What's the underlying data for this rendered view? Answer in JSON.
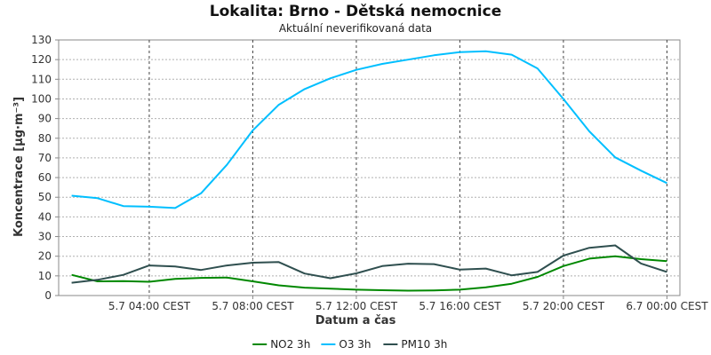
{
  "chart_data": {
    "type": "line",
    "title": "Lokalita: Brno - Dětská nemocnice",
    "subtitle": "Aktuální neverifikovaná data",
    "xlabel": "Datum a čas",
    "ylabel": "Koncentrace [µg·m⁻³]",
    "ylim": [
      0,
      130
    ],
    "yticks": [
      0,
      10,
      20,
      30,
      40,
      50,
      60,
      70,
      80,
      90,
      100,
      110,
      120,
      130
    ],
    "xlim": [
      0.5,
      24.5
    ],
    "xticks": [
      {
        "x": 4,
        "label": "5.7 04:00 CEST"
      },
      {
        "x": 8,
        "label": "5.7 08:00 CEST"
      },
      {
        "x": 12,
        "label": "5.7 12:00 CEST"
      },
      {
        "x": 16,
        "label": "5.7 16:00 CEST"
      },
      {
        "x": 20,
        "label": "5.7 20:00 CEST"
      },
      {
        "x": 24,
        "label": "6.7 00:00 CEST"
      }
    ],
    "grid": true,
    "legend_position": "bottom",
    "x": [
      1,
      2,
      3,
      4,
      5,
      6,
      7,
      8,
      9,
      10,
      11,
      12,
      13,
      14,
      15,
      16,
      17,
      18,
      19,
      20,
      21,
      22,
      23,
      24
    ],
    "series": [
      {
        "name": "NO2 3h",
        "color": "#008800",
        "values": [
          10.5,
          7.2,
          7.3,
          7.0,
          8.5,
          9.0,
          9.1,
          7.2,
          5.2,
          4.0,
          3.5,
          3.0,
          2.7,
          2.5,
          2.6,
          3.0,
          4.2,
          6.0,
          9.5,
          15.0,
          18.8,
          20.0,
          18.5,
          17.5
        ]
      },
      {
        "name": "O3 3h",
        "color": "#00bfff",
        "values": [
          50.8,
          49.5,
          45.5,
          45.2,
          44.5,
          52.0,
          66.5,
          84.0,
          97.0,
          105.0,
          110.5,
          114.8,
          117.8,
          120.0,
          122.2,
          123.8,
          124.2,
          122.5,
          115.5,
          100.0,
          83.5,
          70.3,
          63.5,
          57.2
        ]
      },
      {
        "name": "PM10 3h",
        "color": "#2f4f4f",
        "values": [
          6.5,
          8.0,
          10.5,
          15.3,
          14.8,
          13.0,
          15.3,
          16.7,
          17.0,
          11.2,
          8.8,
          11.3,
          15.0,
          16.2,
          16.0,
          13.2,
          13.7,
          10.3,
          12.0,
          20.3,
          24.3,
          25.5,
          16.3,
          12.0
        ]
      }
    ]
  }
}
